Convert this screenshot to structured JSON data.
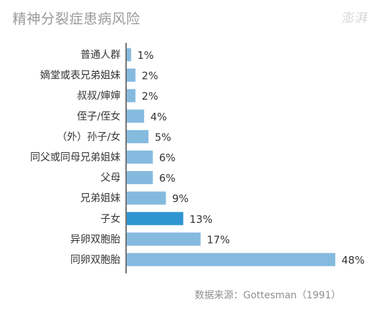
{
  "title": "精神分裂症患病风险",
  "logo": "澎湃",
  "source": "数据来源：Gottesman（1991）",
  "colors": {
    "bar": "#85BADF",
    "highlight": "#2E95D1",
    "axis": "#444444",
    "title": "#9a9a9a",
    "label": "#333333"
  },
  "chart_data": {
    "type": "bar",
    "orientation": "horizontal",
    "categories": [
      "普通人群",
      "嫡堂或表兄弟姐妹",
      "叔叔/婶婶",
      "侄子/侄女",
      "（外）孙子/女",
      "同父或同母兄弟姐妹",
      "父母",
      "兄弟姐妹",
      "子女",
      "异卵双胞胎",
      "同卵双胞胎"
    ],
    "values": [
      1,
      2,
      2,
      4,
      5,
      6,
      6,
      9,
      13,
      17,
      48
    ],
    "value_labels": [
      "1%",
      "2%",
      "2%",
      "4%",
      "5%",
      "6%",
      "6%",
      "9%",
      "13%",
      "17%",
      "48%"
    ],
    "highlight_index": 8,
    "xlim": [
      0,
      48
    ],
    "grid": false,
    "legend": "none"
  }
}
